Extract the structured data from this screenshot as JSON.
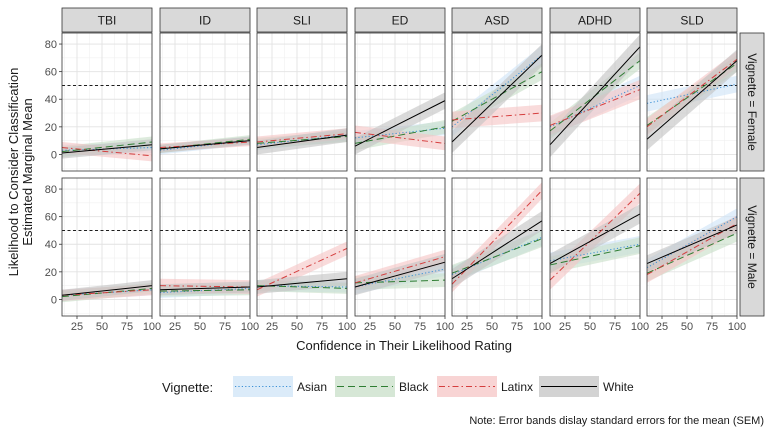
{
  "chart_data": {
    "type": "line",
    "title": "",
    "xlabel": "Confidence in Their Likelihood Rating",
    "ylabel_lines": [
      "Likelihood to Consider Classification",
      "Estimated Marginal Mean"
    ],
    "xlim": [
      10,
      100
    ],
    "ylim": [
      -12,
      88
    ],
    "x_ticks": [
      25,
      50,
      75,
      100
    ],
    "y_ticks": [
      0,
      20,
      40,
      60,
      80
    ],
    "reference_line_y": 50,
    "grid": true,
    "legend_title": "Vignette:",
    "legend_position": "bottom",
    "note": "Note: Error bands dislay standard errors for the mean (SEM)",
    "columns": [
      "TBI",
      "ID",
      "SLI",
      "ED",
      "ASD",
      "ADHD",
      "SLD"
    ],
    "rows": [
      "Vignette = Female",
      "Vignette = Male"
    ],
    "series": [
      {
        "name": "Asian",
        "color": "#3a8fd6",
        "band": "#cfe4f7",
        "dash": "1.2,2.2"
      },
      {
        "name": "Black",
        "color": "#2e7d32",
        "band": "#c8dfc8",
        "dash": "7,4"
      },
      {
        "name": "Latinx",
        "color": "#d53e3e",
        "band": "#f6c5c5",
        "dash": "6,3,1.5,3"
      },
      {
        "name": "White",
        "color": "#000000",
        "band": "#c4c4c4",
        "dash": ""
      }
    ],
    "panels": [
      {
        "row": "Vignette = Female",
        "col": "TBI",
        "lines": [
          [
            3,
            5,
            4
          ],
          [
            2,
            9,
            4
          ],
          [
            5,
            -1,
            4
          ],
          [
            1,
            7,
            4
          ]
        ]
      },
      {
        "row": "Vignette = Female",
        "col": "ID",
        "lines": [
          [
            3,
            10,
            3
          ],
          [
            4,
            11,
            3
          ],
          [
            5,
            9,
            3
          ],
          [
            4,
            10,
            3
          ]
        ]
      },
      {
        "row": "Vignette = Female",
        "col": "SLI",
        "lines": [
          [
            7,
            14,
            4
          ],
          [
            8,
            13,
            4
          ],
          [
            9,
            15,
            4
          ],
          [
            5,
            14,
            5
          ]
        ]
      },
      {
        "row": "Vignette = Female",
        "col": "ED",
        "lines": [
          [
            12,
            19,
            5
          ],
          [
            8,
            20,
            5
          ],
          [
            16,
            8,
            5
          ],
          [
            6,
            39,
            6
          ]
        ]
      },
      {
        "row": "Vignette = Female",
        "col": "ASD",
        "lines": [
          [
            20,
            72,
            7
          ],
          [
            24,
            60,
            6
          ],
          [
            25,
            30,
            6
          ],
          [
            9,
            72,
            8
          ]
        ]
      },
      {
        "row": "Vignette = Female",
        "col": "ADHD",
        "lines": [
          [
            20,
            50,
            7
          ],
          [
            17,
            68,
            6
          ],
          [
            21,
            47,
            7
          ],
          [
            7,
            78,
            9
          ]
        ]
      },
      {
        "row": "Vignette = Female",
        "col": "SLD",
        "lines": [
          [
            37,
            51,
            6
          ],
          [
            21,
            66,
            6
          ],
          [
            20,
            69,
            6
          ],
          [
            11,
            68,
            8
          ]
        ]
      },
      {
        "row": "Vignette = Male",
        "col": "TBI",
        "lines": [
          [
            3,
            7,
            4
          ],
          [
            2,
            8,
            4
          ],
          [
            3,
            7,
            4
          ],
          [
            3,
            10,
            4
          ]
        ]
      },
      {
        "row": "Vignette = Male",
        "col": "ID",
        "lines": [
          [
            5,
            8,
            4
          ],
          [
            6,
            7,
            4
          ],
          [
            10,
            9,
            5
          ],
          [
            7,
            9,
            4
          ]
        ]
      },
      {
        "row": "Vignette = Male",
        "col": "SLI",
        "lines": [
          [
            10,
            9,
            4
          ],
          [
            10,
            8,
            4
          ],
          [
            7,
            37,
            5
          ],
          [
            9,
            15,
            5
          ]
        ]
      },
      {
        "row": "Vignette = Male",
        "col": "ED",
        "lines": [
          [
            9,
            22,
            5
          ],
          [
            12,
            14,
            5
          ],
          [
            12,
            31,
            5
          ],
          [
            9,
            27,
            6
          ]
        ]
      },
      {
        "row": "Vignette = Male",
        "col": "ASD",
        "lines": [
          [
            18,
            45,
            6
          ],
          [
            19,
            44,
            6
          ],
          [
            11,
            79,
            6
          ],
          [
            15,
            57,
            7
          ]
        ]
      },
      {
        "row": "Vignette = Male",
        "col": "ADHD",
        "lines": [
          [
            28,
            40,
            6
          ],
          [
            25,
            39,
            6
          ],
          [
            14,
            77,
            7
          ],
          [
            26,
            62,
            7
          ]
        ]
      },
      {
        "row": "Vignette = Male",
        "col": "SLD",
        "lines": [
          [
            23,
            60,
            6
          ],
          [
            19,
            48,
            6
          ],
          [
            18,
            55,
            6
          ],
          [
            26,
            54,
            6
          ]
        ]
      }
    ]
  }
}
